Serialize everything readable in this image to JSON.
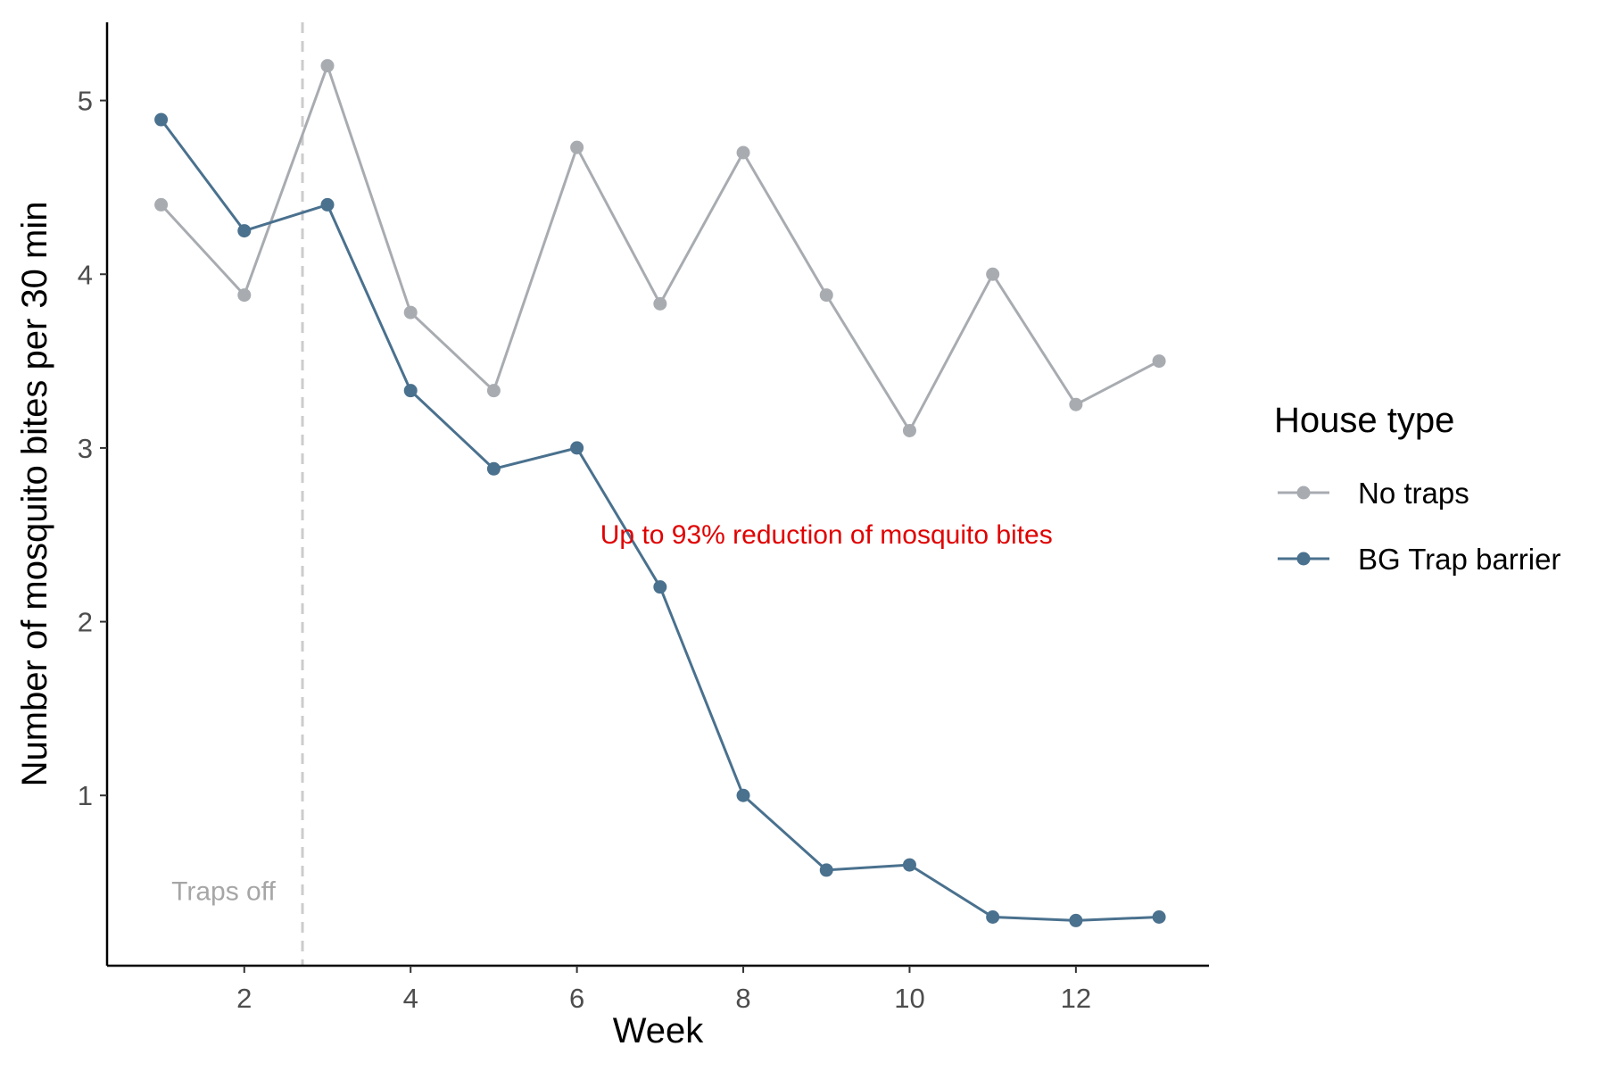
{
  "chart_data": {
    "type": "line",
    "xlabel": "Week",
    "ylabel": "Number of mosquito bites per 30 min",
    "xlim": [
      0.35,
      13.6
    ],
    "ylim": [
      0.02,
      5.45
    ],
    "x_ticks": [
      2,
      4,
      6,
      8,
      10,
      12
    ],
    "y_ticks": [
      1,
      2,
      3,
      4,
      5
    ],
    "grid": false,
    "legend": {
      "title": "House type",
      "placement": "right"
    },
    "x": [
      1,
      2,
      3,
      4,
      5,
      6,
      7,
      8,
      9,
      10,
      11,
      12,
      13
    ],
    "series": [
      {
        "name": "No traps",
        "color": "#a8acb1",
        "values": [
          4.4,
          3.88,
          5.2,
          3.78,
          3.33,
          4.73,
          3.83,
          4.7,
          3.88,
          3.1,
          4.0,
          3.25,
          3.5
        ]
      },
      {
        "name": "BG Trap barrier",
        "color": "#4a718e",
        "values": [
          4.89,
          4.25,
          4.4,
          3.33,
          2.88,
          3.0,
          2.2,
          1.0,
          0.57,
          0.6,
          0.3,
          0.28,
          0.3
        ]
      }
    ],
    "annotations": [
      {
        "text": "Up to 93% reduction of mosquito bites",
        "x": 9.0,
        "y": 2.5,
        "color": "#e00000"
      },
      {
        "text": "Traps off",
        "x": 1.75,
        "y": 0.45,
        "color": "#a6a6a6"
      }
    ],
    "vline": {
      "x": 2.7,
      "color": "#cccccc",
      "style": "dashed"
    }
  }
}
